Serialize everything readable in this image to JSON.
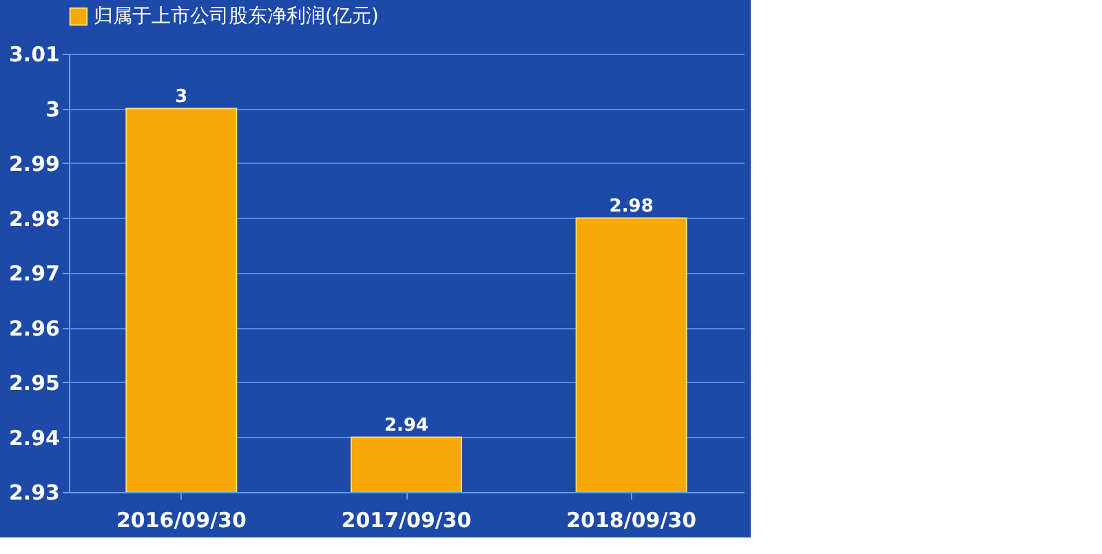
{
  "chart_data": {
    "type": "bar",
    "categories": [
      "2016/09/30",
      "2017/09/30",
      "2018/09/30"
    ],
    "series": [
      {
        "name": "归属于上市公司股东净利润(亿元)",
        "color": "#f7a80c",
        "values": [
          3,
          2.94,
          2.98
        ]
      }
    ],
    "ylim": [
      2.93,
      3.01
    ],
    "yticks": [
      2.93,
      2.94,
      2.95,
      2.96,
      2.97,
      2.98,
      2.99,
      3,
      3.01
    ],
    "grid": "y",
    "legend": "top",
    "data_labels": true
  }
}
